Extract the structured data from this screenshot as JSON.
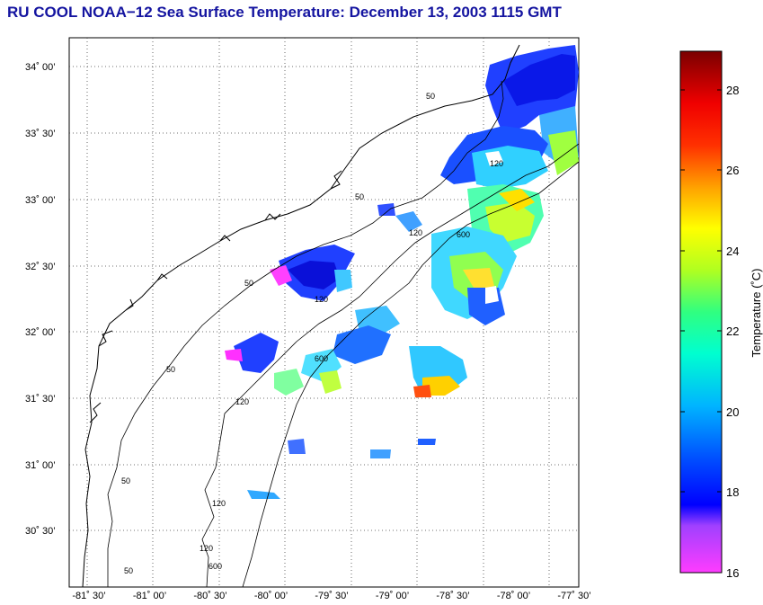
{
  "title": "RU COOL  NOAA−12  Sea Surface Temperature:  December 13, 2003 1115 GMT",
  "map": {
    "y_ticks": [
      "34˚ 00’",
      "33˚ 30’",
      "33˚ 00’",
      "32˚ 30’",
      "32˚ 00’",
      "31˚ 30’",
      "31˚ 00’",
      "30˚ 30’"
    ],
    "x_ticks": [
      "-81˚ 30’",
      "-81˚ 00’",
      "-80˚ 30’",
      "-80˚ 00’",
      "-79˚ 30’",
      "-79˚ 00’",
      "-78˚ 30’",
      "-78˚ 00’",
      "-77˚ 30’"
    ],
    "contour_labels": [
      "50",
      "50",
      "50",
      "50",
      "50",
      "50",
      "120",
      "120",
      "120",
      "120",
      "120",
      "120",
      "600",
      "600",
      "600"
    ],
    "grid": "dotted",
    "land_color": "#ffffff",
    "coast_color": "#000000"
  },
  "colorbar": {
    "label": "Temperature (˚C)",
    "ticks": [
      "28",
      "26",
      "24",
      "22",
      "20",
      "18",
      "16"
    ],
    "min": 16,
    "max": 29,
    "colors": [
      "#ff00ff",
      "#8000ff",
      "#0000ff",
      "#0080ff",
      "#00ffff",
      "#00ff80",
      "#80ff00",
      "#ffff00",
      "#ff8000",
      "#ff0000",
      "#800000"
    ]
  }
}
